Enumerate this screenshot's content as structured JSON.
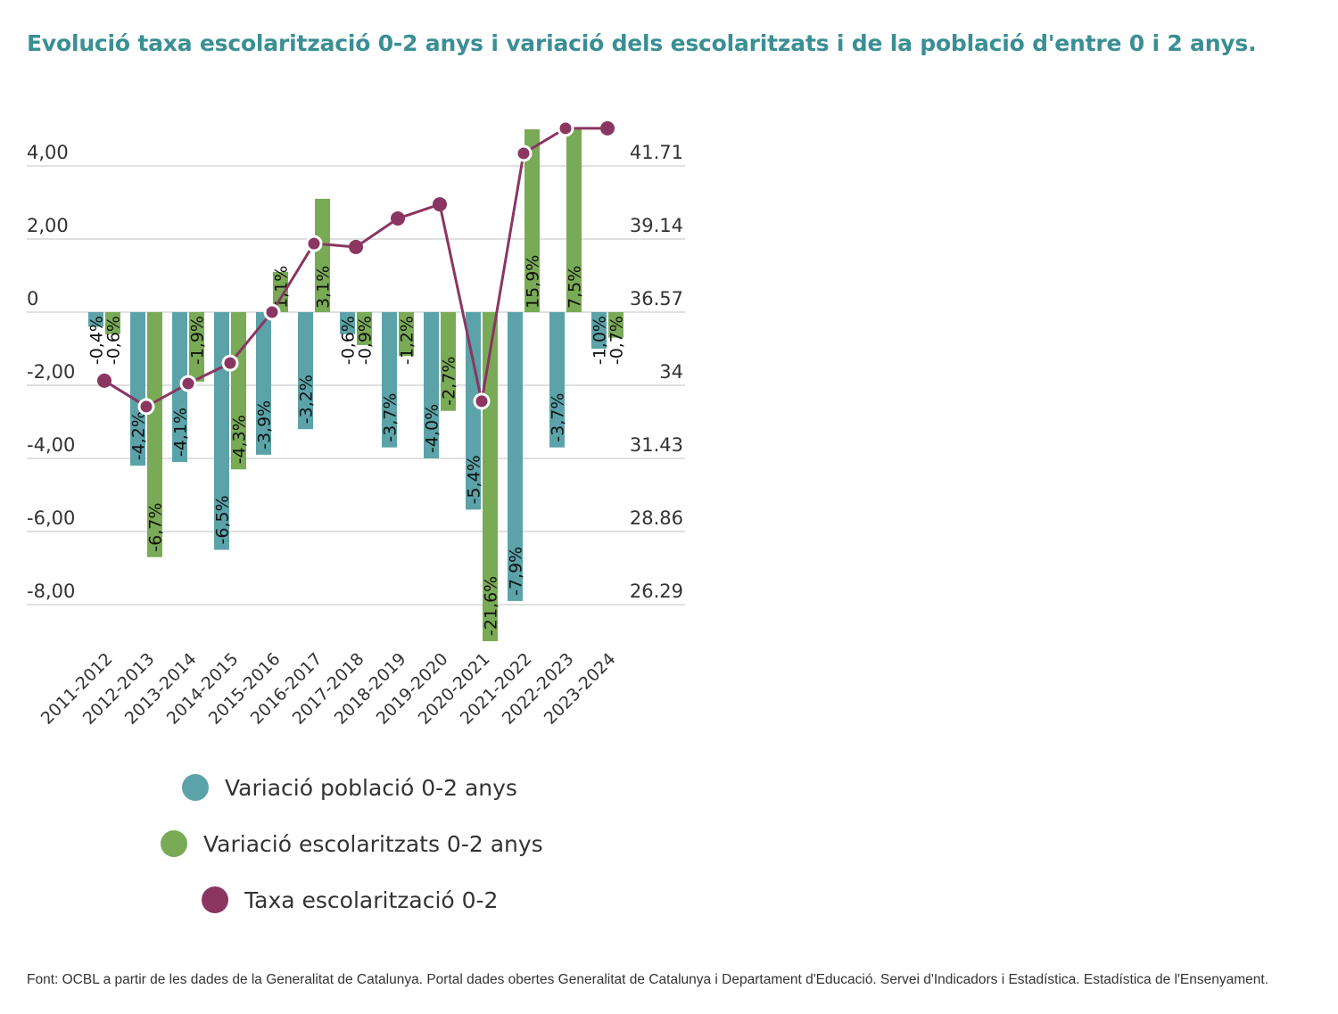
{
  "title": "Evolució taxa escolarització 0-2 anys i variació dels escolaritzats i de la població d'entre 0 i 2 anys.",
  "legend": [
    {
      "label": "Variació població 0-2 anys",
      "color": "#5ba3a8"
    },
    {
      "label": "Variació escolaritzats 0-2 anys",
      "color": "#79aa55"
    },
    {
      "label": "Taxa escolarització 0-2",
      "color": "#8a3661"
    }
  ],
  "footer": "Font: OCBL a partir de les dades de la Generalitat de Catalunya. Portal dades obertes Generalitat de Catalunya i Departament d'Educació. Servei d'Indicadors i Estadística. Estadística de l'Ensenyament.",
  "chart_data": {
    "type": "bar",
    "title": "Evolució taxa escolarització 0-2 anys i variació dels escolaritzats i de la població d'entre 0 i 2 anys.",
    "categories": [
      "2011-2012",
      "2012-2013",
      "2013-2014",
      "2014-2015",
      "2015-2016",
      "2016-2017",
      "2017-2018",
      "2018-2019",
      "2019-2020",
      "2020-2021",
      "2021-2022",
      "2022-2023",
      "2023-2024"
    ],
    "series": [
      {
        "name": "Variació població 0-2 anys",
        "type": "bar",
        "axis": "left",
        "color": "#5ba3a8",
        "values": [
          -0.4,
          -4.2,
          -4.1,
          -6.5,
          -3.9,
          -3.2,
          -0.6,
          -3.7,
          -4.0,
          -5.4,
          -7.9,
          -3.7,
          -1.0
        ],
        "labels": [
          "-0,4%",
          "-4,2%",
          "-4,1%",
          "-6,5%",
          "-3,9%",
          "-3,2%",
          "-0,6%",
          "-3,7%",
          "-4,0%",
          "-5,4%",
          "-7,9%",
          "-3,7%",
          "-1,0%"
        ]
      },
      {
        "name": "Variació escolaritzats 0-2 anys",
        "type": "bar",
        "axis": "left",
        "color": "#79aa55",
        "values": [
          -0.6,
          -6.7,
          -1.9,
          -4.3,
          1.1,
          3.1,
          -0.9,
          -1.2,
          -2.7,
          -21.6,
          15.9,
          7.5,
          -0.7
        ],
        "labels": [
          "-0,6%",
          "-6,7%",
          "-1,9%",
          "-4,3%",
          "1,1%",
          "3,1%",
          "-0,9%",
          "-1,2%",
          "-2,7%",
          "-21,6%",
          "15,9%",
          "7,5%",
          "-0,7%"
        ]
      },
      {
        "name": "Taxa escolarització 0-2",
        "type": "line",
        "axis": "right",
        "color": "#8a3661",
        "values": [
          34.16,
          33.25,
          34.06,
          34.78,
          36.57,
          38.98,
          38.86,
          39.86,
          40.36,
          33.44,
          42.15,
          43.03,
          43.03
        ]
      }
    ],
    "left_axis": {
      "ticks": [
        4,
        2,
        0,
        -2,
        -4,
        -6,
        -8
      ],
      "tick_labels": [
        "4,00",
        "2,00",
        "0",
        "-2,00",
        "-4,00",
        "-6,00",
        "-8,00"
      ],
      "range": [
        -9,
        5
      ]
    },
    "right_axis": {
      "ticks": [
        41.71,
        39.14,
        36.57,
        34,
        31.43,
        28.86,
        26.29
      ],
      "tick_labels": [
        "41.71",
        "39.14",
        "36.57",
        "34",
        "31.43",
        "28.86",
        "26.29"
      ]
    },
    "xlabel": "",
    "ylabel": "",
    "grid": true,
    "legend_position": "bottom-left"
  }
}
